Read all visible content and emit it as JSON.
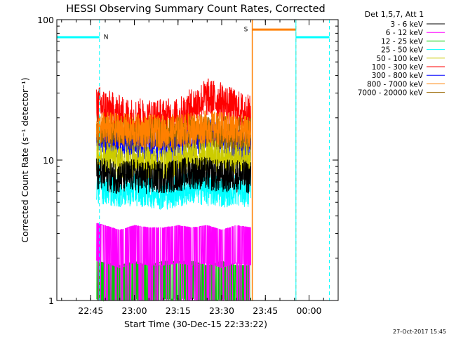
{
  "chart_data": {
    "type": "line",
    "title": "HESSI Observing Summary Count Rates, Corrected",
    "xlabel": "Start Time (30-Dec-15 22:33:22)",
    "ylabel": "Corrected Count Rate (s⁻¹ detector⁻¹)",
    "yscale": "log",
    "ylim": [
      1,
      100
    ],
    "xlim": [
      "22:33:22",
      "00:10:00"
    ],
    "x_ticks": [
      "22:45",
      "23:00",
      "23:15",
      "23:30",
      "23:45",
      "00:00"
    ],
    "y_ticks": [
      "1",
      "10",
      "100"
    ],
    "legend_header": "Det 1,5,7, Att 1",
    "legend_position": "top-right, outside plot",
    "series": [
      {
        "name": "3 - 6 keV",
        "color": "#000000",
        "x_range": [
          "22:47",
          "23:40"
        ],
        "points": [
          [
            "22:47",
            8
          ],
          [
            "22:55",
            7.5
          ],
          [
            "23:00",
            7.8
          ],
          [
            "23:05",
            7.4
          ],
          [
            "23:10",
            7.6
          ],
          [
            "23:15",
            7.8
          ],
          [
            "23:20",
            8.2
          ],
          [
            "23:25",
            8.0
          ],
          [
            "23:30",
            7.6
          ],
          [
            "23:35",
            7.8
          ],
          [
            "23:40",
            7.5
          ]
        ]
      },
      {
        "name": "6 - 12 keV",
        "color": "#ff00ff",
        "x_range": [
          "22:47",
          "23:40"
        ],
        "points": [
          [
            "22:47",
            2.8
          ],
          [
            "22:55",
            2.5
          ],
          [
            "23:00",
            2.7
          ],
          [
            "23:05",
            2.6
          ],
          [
            "23:10",
            2.6
          ],
          [
            "23:15",
            2.7
          ],
          [
            "23:20",
            2.6
          ],
          [
            "23:25",
            2.7
          ],
          [
            "23:30",
            2.5
          ],
          [
            "23:35",
            2.7
          ],
          [
            "23:40",
            2.6
          ]
        ]
      },
      {
        "name": "12 - 25 keV",
        "color": "#00cc00",
        "x_range": [
          "22:47",
          "23:40"
        ],
        "points": [
          [
            "22:47",
            1.5
          ],
          [
            "22:55",
            1.4
          ],
          [
            "23:00",
            1.5
          ],
          [
            "23:05",
            1.4
          ],
          [
            "23:10",
            1.5
          ],
          [
            "23:15",
            1.5
          ],
          [
            "23:20",
            1.5
          ],
          [
            "23:25",
            1.4
          ],
          [
            "23:30",
            1.5
          ],
          [
            "23:35",
            1.4
          ],
          [
            "23:40",
            1.4
          ]
        ]
      },
      {
        "name": "25 - 50 keV",
        "color": "#00ffff",
        "x_range": [
          "22:47",
          "23:40"
        ],
        "points": [
          [
            "22:47",
            6.5
          ],
          [
            "22:55",
            6.0
          ],
          [
            "23:00",
            6.2
          ],
          [
            "23:05",
            6.0
          ],
          [
            "23:10",
            5.8
          ],
          [
            "23:15",
            6.0
          ],
          [
            "23:20",
            6.4
          ],
          [
            "23:25",
            6.2
          ],
          [
            "23:30",
            6.0
          ],
          [
            "23:35",
            6.2
          ],
          [
            "23:40",
            6.0
          ]
        ]
      },
      {
        "name": "50 - 100 keV",
        "color": "#cccc00",
        "x_range": [
          "22:47",
          "23:40"
        ],
        "points": [
          [
            "22:47",
            11
          ],
          [
            "22:55",
            9.5
          ],
          [
            "23:00",
            10
          ],
          [
            "23:05",
            9.5
          ],
          [
            "23:10",
            9.5
          ],
          [
            "23:15",
            10
          ],
          [
            "23:20",
            10.5
          ],
          [
            "23:25",
            11
          ],
          [
            "23:30",
            10.5
          ],
          [
            "23:35",
            10.5
          ],
          [
            "23:40",
            10.5
          ]
        ]
      },
      {
        "name": "100 - 300 keV",
        "color": "#ff0000",
        "x_range": [
          "22:47",
          "23:40"
        ],
        "points": [
          [
            "22:47",
            25
          ],
          [
            "22:55",
            21
          ],
          [
            "23:00",
            20
          ],
          [
            "23:05",
            20
          ],
          [
            "23:10",
            20
          ],
          [
            "23:15",
            20
          ],
          [
            "23:20",
            24
          ],
          [
            "23:25",
            28
          ],
          [
            "23:30",
            26
          ],
          [
            "23:35",
            23
          ],
          [
            "23:40",
            21
          ]
        ]
      },
      {
        "name": "300 - 800 keV",
        "color": "#0000ff",
        "x_range": [
          "22:47",
          "23:40"
        ],
        "points": [
          [
            "22:47",
            14
          ],
          [
            "22:55",
            13
          ],
          [
            "23:00",
            12.5
          ],
          [
            "23:05",
            12.5
          ],
          [
            "23:10",
            12.8
          ],
          [
            "23:15",
            13
          ],
          [
            "23:20",
            14
          ],
          [
            "23:25",
            15
          ],
          [
            "23:30",
            14
          ],
          [
            "23:35",
            13
          ],
          [
            "23:40",
            12.5
          ]
        ]
      },
      {
        "name": "800 - 7000 keV",
        "color": "#ff8000",
        "x_range": [
          "22:47",
          "23:40"
        ],
        "points": [
          [
            "22:47",
            17
          ],
          [
            "22:55",
            16.5
          ],
          [
            "23:00",
            16.2
          ],
          [
            "23:05",
            16
          ],
          [
            "23:10",
            16
          ],
          [
            "23:15",
            16.2
          ],
          [
            "23:20",
            16.8
          ],
          [
            "23:25",
            17.2
          ],
          [
            "23:30",
            16.8
          ],
          [
            "23:35",
            16.5
          ],
          [
            "23:40",
            16.2
          ]
        ]
      },
      {
        "name": "7000 - 20000 keV",
        "color": "#996600",
        "x_range": [
          "22:47",
          "23:40"
        ],
        "points": [
          [
            "22:47",
            16
          ],
          [
            "22:55",
            15.5
          ],
          [
            "23:00",
            15.3
          ],
          [
            "23:05",
            15.2
          ],
          [
            "23:10",
            15.2
          ],
          [
            "23:15",
            15.4
          ],
          [
            "23:20",
            15.8
          ],
          [
            "23:25",
            16
          ],
          [
            "23:30",
            15.8
          ],
          [
            "23:35",
            15.5
          ],
          [
            "23:40",
            15.3
          ]
        ]
      }
    ],
    "annotations": [
      {
        "text": "N",
        "color": "#00ffff",
        "type": "night",
        "x_range": [
          "22:33:22",
          "22:48:00"
        ],
        "level": 75
      },
      {
        "text": "S",
        "color": "#ff8000",
        "type": "saa",
        "x_range": [
          "23:40:30",
          "23:55:30"
        ],
        "level": 85
      },
      {
        "type": "cyan-interval",
        "color": "#00ffff",
        "x_range": [
          "23:55:30",
          "00:07:00"
        ],
        "level": 75
      }
    ],
    "grid": false
  },
  "footer": {
    "timestamp": "27-Oct-2017 15:45"
  },
  "legend_row_suffix": "—"
}
